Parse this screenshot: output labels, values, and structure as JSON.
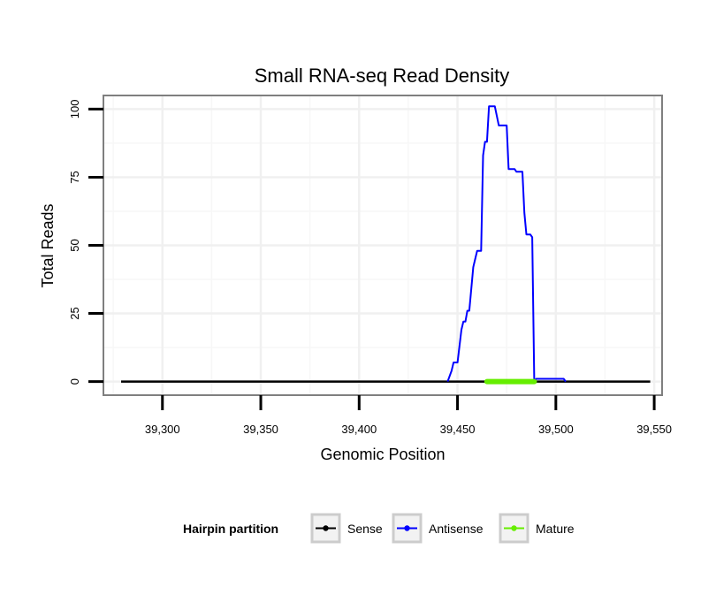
{
  "chart_data": {
    "type": "line",
    "title": "Small RNA-seq Read Density",
    "xlabel": "Genomic Position",
    "ylabel": "Total Reads",
    "xlim": [
      39270,
      39554
    ],
    "ylim": [
      -5,
      105
    ],
    "x_ticks": [
      39300,
      39350,
      39400,
      39450,
      39500,
      39550
    ],
    "x_tick_labels": [
      "39,300",
      "39,350",
      "39,400",
      "39,450",
      "39,500",
      "39,550"
    ],
    "y_ticks": [
      0,
      25,
      50,
      75,
      100
    ],
    "y_tick_labels": [
      "0",
      "25",
      "50",
      "75",
      "100"
    ],
    "grid": true,
    "legend": {
      "title": "Hairpin partition",
      "position": "bottom"
    },
    "series": [
      {
        "name": "Sense",
        "color": "#000000",
        "x": [
          39279,
          39548
        ],
        "y": [
          0,
          0
        ]
      },
      {
        "name": "Antisense",
        "color": "#0000ff",
        "x": [
          39445,
          39447,
          39448,
          39449,
          39450,
          39451,
          39452,
          39453,
          39454,
          39455,
          39456,
          39458,
          39459,
          39460,
          39461,
          39462,
          39463,
          39464,
          39465,
          39466,
          39467,
          39468,
          39469,
          39471,
          39472,
          39473,
          39474,
          39475,
          39476,
          39478,
          39479,
          39480,
          39481,
          39482,
          39483,
          39484,
          39485,
          39486,
          39487,
          39488,
          39489,
          39490,
          39491,
          39492,
          39493,
          39494,
          39495,
          39496,
          39497,
          39498,
          39499,
          39500,
          39501,
          39502,
          39503,
          39504,
          39505
        ],
        "y": [
          0,
          4,
          7,
          7,
          7,
          13,
          19,
          22,
          22,
          26,
          26,
          42,
          45,
          48,
          48,
          48,
          83,
          88,
          88,
          101,
          101,
          101,
          101,
          94,
          94,
          94,
          94,
          94,
          78,
          78,
          78,
          77,
          77,
          77,
          77,
          62,
          54,
          54,
          54,
          53,
          0,
          1,
          1,
          1,
          1,
          1,
          1,
          1,
          1,
          1,
          1,
          1,
          1,
          1,
          1,
          1,
          0
        ]
      },
      {
        "name": "Mature",
        "color": "#66ee00",
        "x": [
          39465,
          39489
        ],
        "y": [
          0,
          0
        ]
      }
    ]
  }
}
